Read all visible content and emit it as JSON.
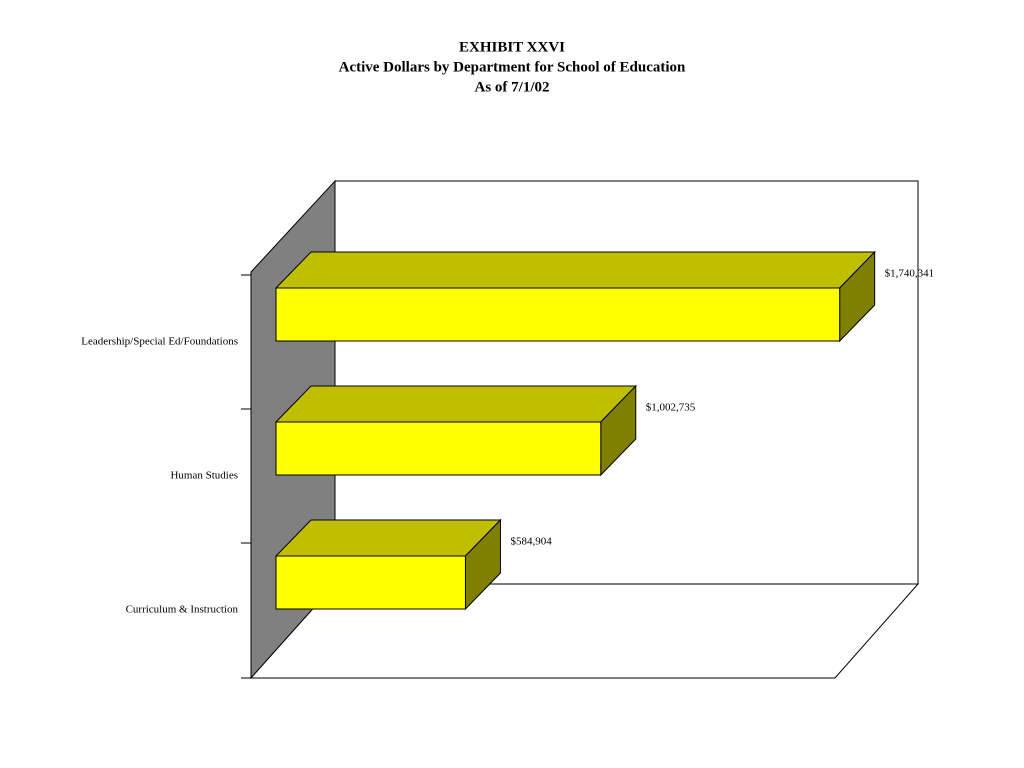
{
  "chart_data": {
    "type": "bar3d-horizontal",
    "title": [
      "EXHIBIT XXVI",
      "Active Dollars by Department for School of Education",
      "As of 7/1/02"
    ],
    "categories": [
      "Leadership/Special Ed/Foundations",
      "Human Studies",
      "Curriculum & Instruction"
    ],
    "values": [
      1740341,
      1002735,
      584904
    ],
    "value_labels": [
      "$1,740,341",
      "$1,002,735",
      "$584,904"
    ],
    "xlim": [
      0,
      1800000
    ],
    "color": "#ffff00"
  }
}
